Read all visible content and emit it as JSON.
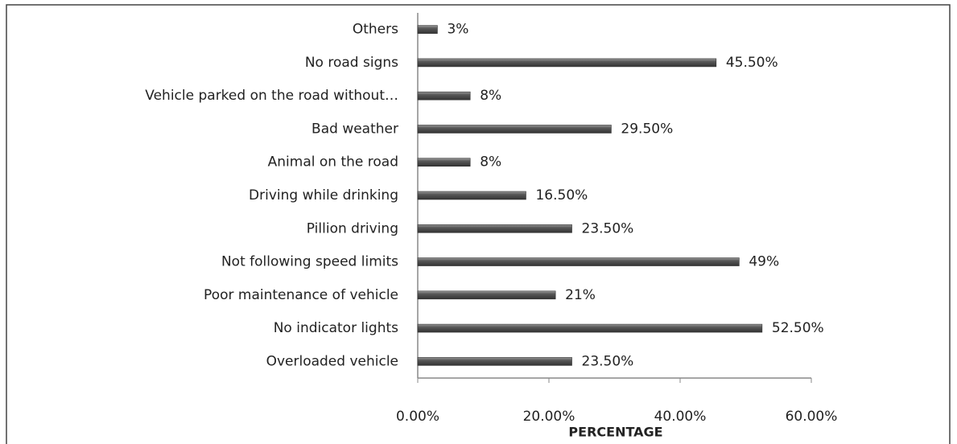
{
  "chart_data": {
    "type": "bar",
    "orientation": "horizontal",
    "categories": [
      "Others",
      "No road signs",
      "Vehicle parked on the road without…",
      "Bad weather",
      "Animal on the road",
      "Driving while drinking",
      "Pillion driving",
      "Not following speed limits",
      "Poor maintenance of vehicle",
      "No indicator lights",
      "Overloaded vehicle"
    ],
    "values": [
      3,
      45.5,
      8,
      29.5,
      8,
      16.5,
      23.5,
      49,
      21,
      52.5,
      23.5
    ],
    "value_labels": [
      "3%",
      "45.50%",
      "8%",
      "29.50%",
      "8%",
      "16.50%",
      "23.50%",
      "49%",
      "21%",
      "52.50%",
      "23.50%"
    ],
    "color": "#595959",
    "x_label": "PERCENTAGE",
    "xlim": [
      0,
      60
    ],
    "xticks": [
      {
        "value": 0,
        "label": "0.00%"
      },
      {
        "value": 20,
        "label": "20.00%"
      },
      {
        "value": 40,
        "label": "40.00%"
      },
      {
        "value": 60,
        "label": "60.00%"
      }
    ]
  }
}
